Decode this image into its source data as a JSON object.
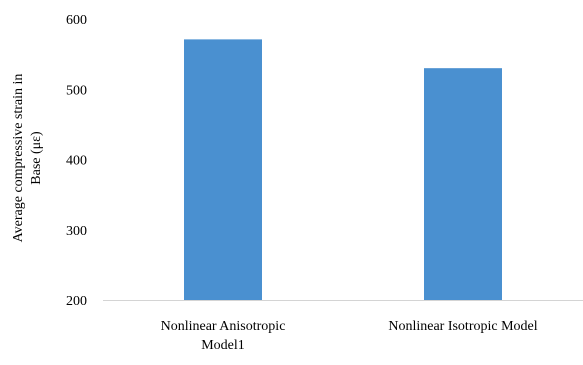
{
  "chart_data": {
    "type": "bar",
    "categories": [
      "Nonlinear Anisotropic Model1",
      "Nonlinear Isotropic Model"
    ],
    "category_lines": [
      [
        "Nonlinear Anisotropic",
        "Model1"
      ],
      [
        "Nonlinear Isotropic Model"
      ]
    ],
    "values": [
      571,
      530
    ],
    "title": "",
    "xlabel": "",
    "ylabel_lines": [
      "Average compressive strain in",
      "Base (με)"
    ],
    "ylim": [
      200,
      600
    ],
    "yticks": [
      200,
      300,
      400,
      500,
      600
    ],
    "ytick_labels": [
      "200",
      "300",
      "400",
      "500",
      "600"
    ],
    "grid": false,
    "legend": "none",
    "colors": {
      "bar": "#4a90d0",
      "axis": "#d4d4d4"
    }
  }
}
